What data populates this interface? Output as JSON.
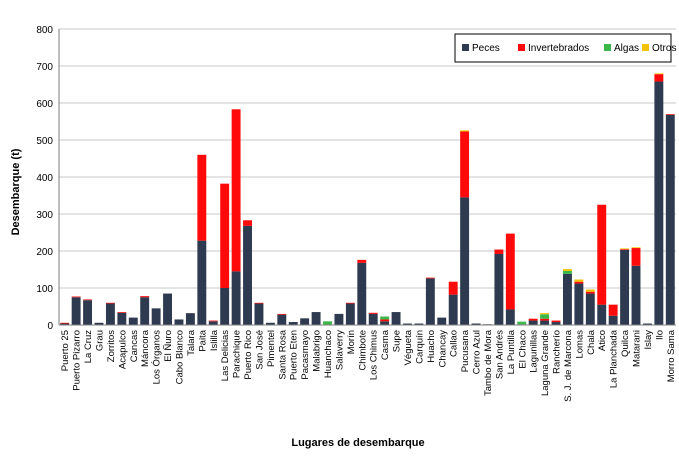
{
  "colors": {
    "Peces": "#2e3a4f",
    "Invertebrados": "#ff0a0a",
    "Algas": "#3cb84a",
    "Otros": "#f2c200",
    "background": "#ffffff",
    "grid": "#c8c8c8",
    "axis": "#7f7f7f"
  },
  "chart_data": {
    "type": "bar",
    "stacked": true,
    "title": "",
    "xlabel": "Lugares de desembarque",
    "ylabel": "Desembarque (t)",
    "ylim": [
      0,
      800
    ],
    "yticks": [
      0,
      100,
      200,
      300,
      400,
      500,
      600,
      700,
      800
    ],
    "grid": true,
    "legend_position": "top-right",
    "categories": [
      "Puerto 25",
      "Puerto Pizarro",
      "La Cruz",
      "Grau",
      "Zorritos",
      "Acapulco",
      "Cancas",
      "Máncora",
      "Los Órganos",
      "El Ñuro",
      "Cabo Blanco",
      "Talara",
      "Paita",
      "Islilla",
      "Las Delicias",
      "Parachique",
      "Puerto Rico",
      "San José",
      "Pimentel",
      "Santa Rosa",
      "Puerto Eten",
      "Pacasmayo",
      "Malabrigo",
      "Huanchaco",
      "Salaverry",
      "Morín",
      "Chimbote",
      "Los Chimus",
      "Casma",
      "Supe",
      "Végueta",
      "Carquín",
      "Huacho",
      "Chancay",
      "Callao",
      "Pucusana",
      "Cerro Azul",
      "Tambo de Mora",
      "San Andrés",
      "La Puntilla",
      "El Chaco",
      "Lagunillas",
      "Laguna Grande",
      "Rancherío",
      "S. J. de Marcona",
      "Lomas",
      "Chala",
      "Atico",
      "La Planchada",
      "Quilca",
      "Matarani",
      "Islay",
      "Ilo",
      "Morro Sama"
    ],
    "series": [
      {
        "name": "Peces",
        "values": [
          4,
          75,
          67,
          6,
          58,
          33,
          20,
          75,
          45,
          85,
          15,
          32,
          228,
          10,
          100,
          145,
          268,
          58,
          6,
          28,
          8,
          18,
          35,
          0,
          30,
          58,
          168,
          30,
          10,
          35,
          4,
          4,
          126,
          20,
          82,
          345,
          4,
          2,
          192,
          42,
          2,
          12,
          12,
          8,
          138,
          112,
          85,
          55,
          25,
          203,
          160,
          4,
          658,
          568
        ]
      },
      {
        "name": "Invertebrados",
        "values": [
          2,
          2,
          2,
          0,
          2,
          2,
          0,
          3,
          0,
          0,
          0,
          0,
          232,
          2,
          282,
          438,
          15,
          2,
          0,
          2,
          0,
          0,
          0,
          0,
          0,
          2,
          8,
          3,
          5,
          0,
          0,
          0,
          2,
          0,
          35,
          178,
          0,
          0,
          12,
          205,
          0,
          5,
          5,
          4,
          0,
          5,
          5,
          270,
          30,
          2,
          48,
          0,
          20,
          2
        ]
      },
      {
        "name": "Algas",
        "values": [
          0,
          0,
          0,
          0,
          0,
          0,
          0,
          0,
          0,
          0,
          0,
          0,
          0,
          0,
          0,
          0,
          0,
          0,
          0,
          0,
          0,
          0,
          0,
          10,
          0,
          0,
          0,
          0,
          8,
          0,
          0,
          0,
          0,
          0,
          0,
          0,
          0,
          0,
          0,
          0,
          7,
          0,
          12,
          0,
          8,
          0,
          0,
          0,
          0,
          0,
          0,
          0,
          0,
          0
        ]
      },
      {
        "name": "Otros",
        "values": [
          0,
          0,
          0,
          0,
          0,
          0,
          0,
          0,
          0,
          0,
          0,
          0,
          0,
          0,
          0,
          0,
          0,
          0,
          0,
          0,
          0,
          0,
          0,
          0,
          0,
          0,
          0,
          0,
          0,
          0,
          0,
          0,
          0,
          0,
          0,
          3,
          0,
          0,
          0,
          0,
          0,
          0,
          3,
          0,
          5,
          6,
          6,
          0,
          0,
          2,
          2,
          0,
          2,
          0
        ]
      }
    ]
  }
}
